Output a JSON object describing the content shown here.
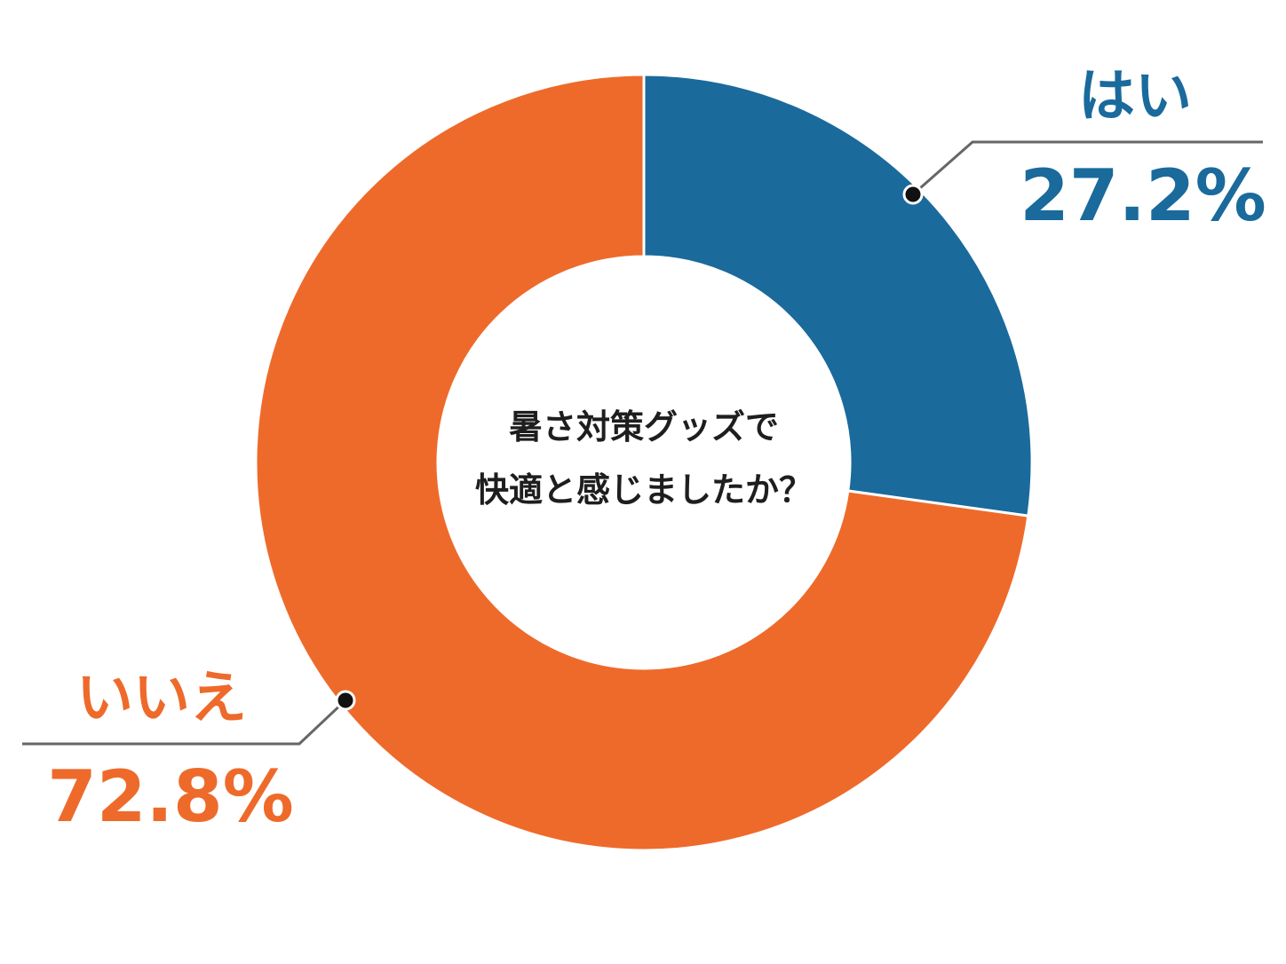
{
  "chart_data": {
    "type": "pie",
    "style": "donut",
    "center_text": [
      "暑さ対策グッズで",
      "快適と感じましたか？"
    ],
    "slices": [
      {
        "label": "はい",
        "value": 27.2,
        "value_label": "27.2%",
        "color": "#1a6a9c"
      },
      {
        "label": "いいえ",
        "value": 72.8,
        "value_label": "72.8%",
        "color": "#ee6a2b"
      }
    ],
    "start": "12 o'clock",
    "direction": "clockwise",
    "legend": "none",
    "leader_color": "#666666"
  }
}
